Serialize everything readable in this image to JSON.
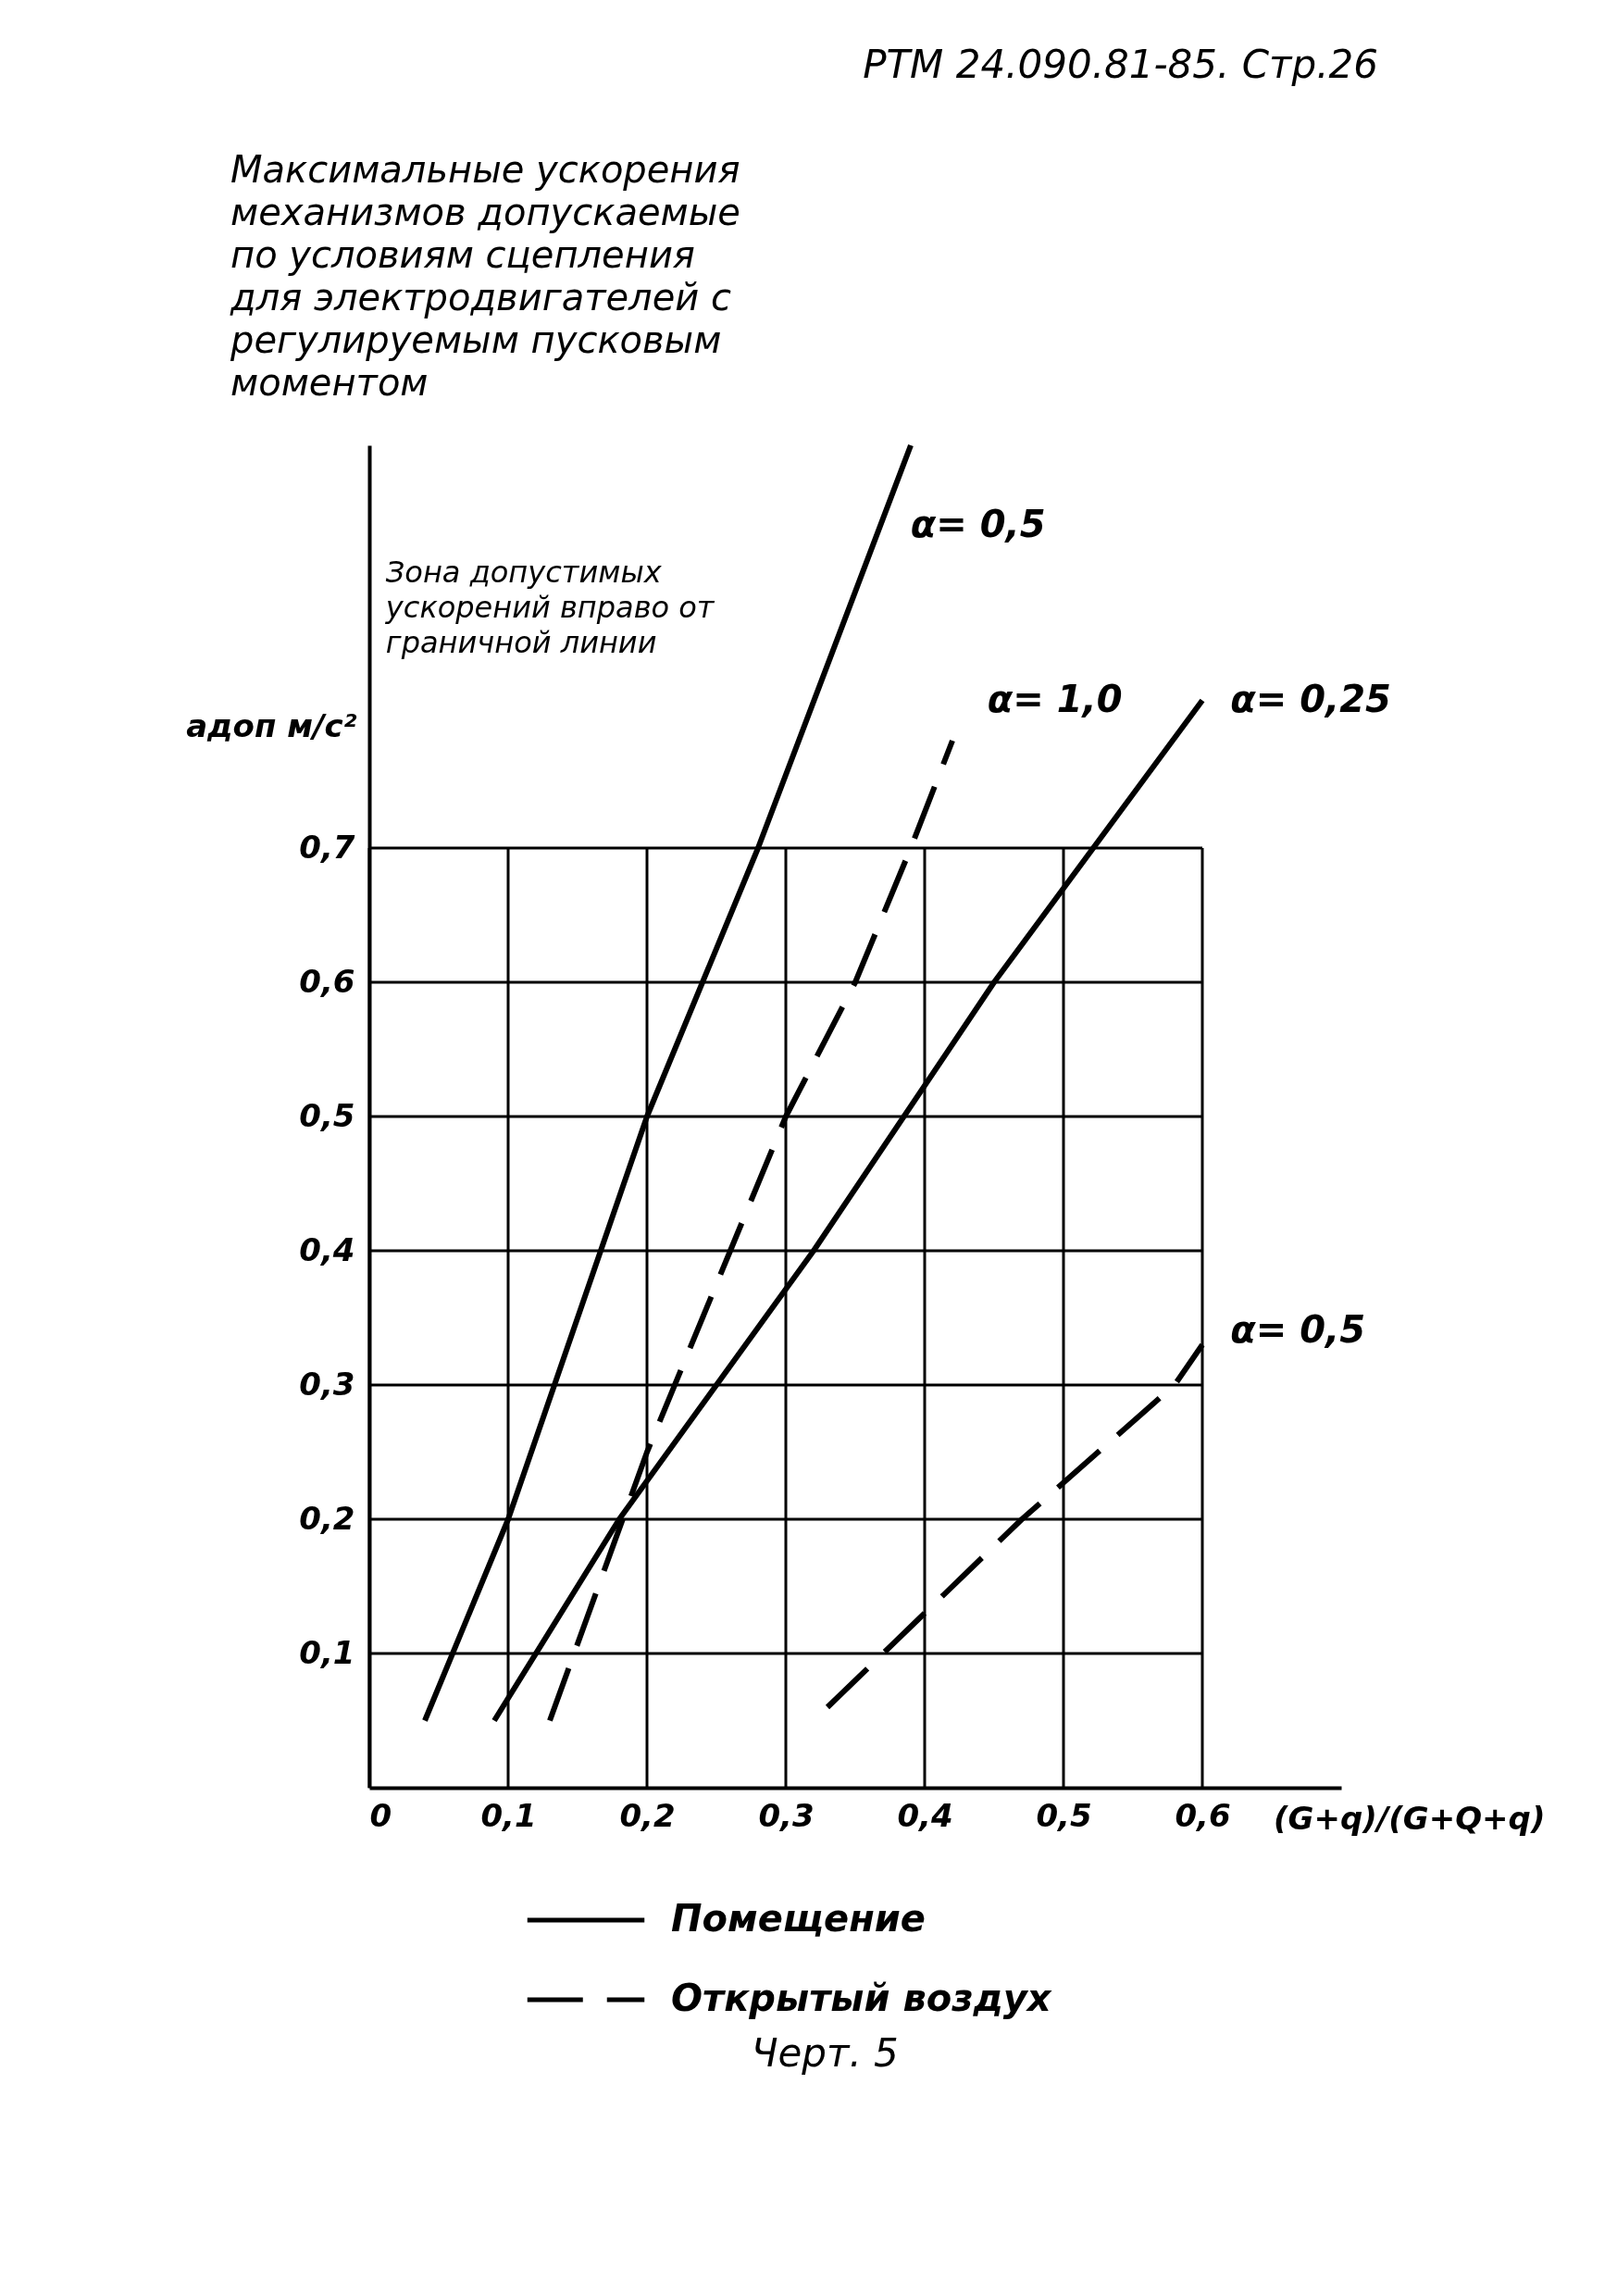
{
  "chart_data": {
    "type": "line",
    "title": "Максимальные ускорения механизмов допускаемые по условиям сцепления для электродвигателей с регулируемым пусковым моментом",
    "xlabel": "(G+q)/(G+Q+q)",
    "ylabel": "aдоп м/с²",
    "xlim": [
      0,
      0.7
    ],
    "ylim": [
      0,
      1.0
    ],
    "xticks": [
      0,
      {
        "value": 0.1,
        "label": "0,1"
      },
      {
        "value": 0.2,
        "label": "0,2"
      },
      {
        "value": 0.3,
        "label": "0,3"
      },
      {
        "value": 0.4,
        "label": "0,4"
      },
      {
        "value": 0.5,
        "label": "0,5"
      },
      {
        "value": 0.6,
        "label": "0,6"
      }
    ],
    "yticks": [
      {
        "value": 0.1,
        "label": "0,1"
      },
      {
        "value": 0.2,
        "label": "0,2"
      },
      {
        "value": 0.3,
        "label": "0,3"
      },
      {
        "value": 0.4,
        "label": "0,4"
      },
      {
        "value": 0.5,
        "label": "0,5"
      },
      {
        "value": 0.6,
        "label": "0,6"
      },
      {
        "value": 0.7,
        "label": "0,7"
      }
    ],
    "grid": true,
    "legend": "bottom",
    "series": [
      {
        "name": "Помещение",
        "color": "#000000",
        "line_style": "solid",
        "x": [
          0.04,
          0.1,
          0.2,
          0.28,
          0.39
        ],
        "values": [
          0.05,
          0.2,
          0.5,
          0.7,
          1.0
        ]
      },
      {
        "color": "#000000",
        "line_style": "solid",
        "x": [
          0.09,
          0.18,
          0.32,
          0.45,
          0.6
        ],
        "values": [
          0.05,
          0.2,
          0.4,
          0.6,
          0.81
        ]
      },
      {
        "name": "Открытый воздух",
        "color": "#000000",
        "line_style": "dashed",
        "x": [
          0.13,
          0.2,
          0.26,
          0.3,
          0.35,
          0.39,
          0.42
        ],
        "values": [
          0.05,
          0.25,
          0.4,
          0.5,
          0.6,
          0.7,
          0.78
        ]
      },
      {
        "color": "#000000",
        "line_style": "dashed",
        "x": [
          0.33,
          0.37,
          0.47,
          0.58,
          0.6
        ],
        "values": [
          0.06,
          0.1,
          0.2,
          0.3,
          0.33
        ]
      }
    ],
    "annotations": [
      "РТМ 24.090.81-85. Стр.26",
      "Зона допустимых ускорений вправо от граничной линии",
      "α= 0,5",
      "α= 1,0",
      "α= 0,25",
      "α= 0,5",
      "Черт. 5"
    ]
  }
}
